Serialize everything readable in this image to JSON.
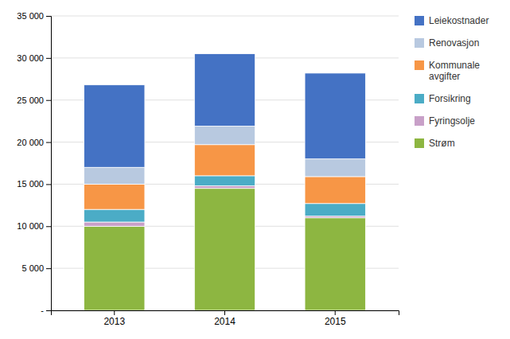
{
  "chart_data": {
    "type": "bar",
    "stacked": true,
    "categories": [
      "2013",
      "2014",
      "2015"
    ],
    "series": [
      {
        "name": "Strøm",
        "color": "#8DB641",
        "values": [
          10000,
          14500,
          11000
        ]
      },
      {
        "name": "Fyringsolje",
        "color": "#C8A0C8",
        "values": [
          500,
          300,
          200
        ]
      },
      {
        "name": "Forsikring",
        "color": "#4BACC6",
        "values": [
          1500,
          1200,
          1500
        ]
      },
      {
        "name": "Kommunale\navgifter",
        "color": "#F79646",
        "values": [
          3000,
          3700,
          3200
        ]
      },
      {
        "name": "Renovasjon",
        "color": "#B8C9E0",
        "values": [
          2000,
          2200,
          2100
        ]
      },
      {
        "name": "Leiekostnader",
        "color": "#4472C4",
        "values": [
          9800,
          8600,
          10200
        ]
      }
    ],
    "ylim": [
      0,
      35000
    ],
    "yticks": [
      {
        "value": 0,
        "label": "-"
      },
      {
        "value": 5000,
        "label": "5 000"
      },
      {
        "value": 10000,
        "label": "10 000"
      },
      {
        "value": 15000,
        "label": "15 000"
      },
      {
        "value": 20000,
        "label": "20 000"
      },
      {
        "value": 25000,
        "label": "25 000"
      },
      {
        "value": 30000,
        "label": "30 000"
      },
      {
        "value": 35000,
        "label": "35 000"
      }
    ],
    "grid": true,
    "legend": "right"
  }
}
